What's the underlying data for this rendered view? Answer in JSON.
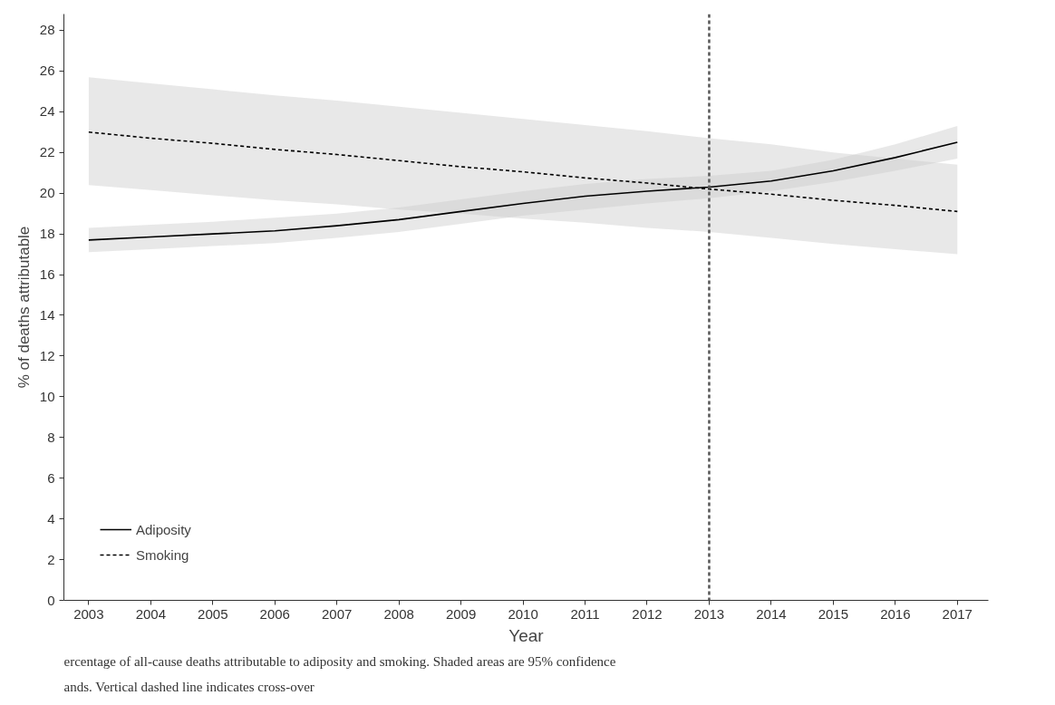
{
  "chart_data": {
    "type": "line",
    "xlabel": "Year",
    "ylabel": "% of deaths attributable",
    "x": [
      2003,
      2004,
      2005,
      2006,
      2007,
      2008,
      2009,
      2010,
      2011,
      2012,
      2013,
      2014,
      2015,
      2016,
      2017
    ],
    "series": [
      {
        "name": "Adiposity",
        "color": "#000000",
        "line_style": "solid",
        "values": [
          17.7,
          17.85,
          18.0,
          18.15,
          18.4,
          18.7,
          19.1,
          19.5,
          19.85,
          20.1,
          20.3,
          20.6,
          21.1,
          21.75,
          22.5
        ],
        "lower": [
          17.1,
          17.25,
          17.4,
          17.55,
          17.8,
          18.1,
          18.5,
          18.9,
          19.2,
          19.5,
          19.75,
          20.1,
          20.55,
          21.1,
          21.7
        ],
        "upper": [
          18.3,
          18.45,
          18.6,
          18.8,
          19.0,
          19.3,
          19.7,
          20.1,
          20.45,
          20.7,
          20.85,
          21.1,
          21.65,
          22.4,
          23.3
        ]
      },
      {
        "name": "Smoking",
        "color": "#000000",
        "line_style": "dashed",
        "values": [
          23.0,
          22.7,
          22.45,
          22.15,
          21.9,
          21.6,
          21.3,
          21.05,
          20.75,
          20.5,
          20.2,
          19.95,
          19.65,
          19.4,
          19.1
        ],
        "lower": [
          20.4,
          20.15,
          19.9,
          19.65,
          19.45,
          19.2,
          19.0,
          18.75,
          18.55,
          18.3,
          18.1,
          17.8,
          17.5,
          17.25,
          17.0
        ],
        "upper": [
          25.7,
          25.4,
          25.1,
          24.8,
          24.55,
          24.25,
          23.95,
          23.65,
          23.35,
          23.05,
          22.7,
          22.4,
          22.0,
          21.7,
          21.4
        ]
      }
    ],
    "xlim": [
      2002.6,
      2017.5
    ],
    "xticks": [
      2003,
      2004,
      2005,
      2006,
      2007,
      2008,
      2009,
      2010,
      2011,
      2012,
      2013,
      2014,
      2015,
      2016,
      2017
    ],
    "ylim": [
      0,
      28.8
    ],
    "yticks": [
      0,
      2,
      4,
      6,
      8,
      10,
      12,
      14,
      16,
      18,
      20,
      22,
      24,
      26,
      28
    ],
    "ref_lines": [
      {
        "axis": "x",
        "value": 2013,
        "color": "#555555",
        "line_style": "dashed"
      }
    ],
    "grid": false,
    "legend": "bottom left",
    "marker": "none",
    "annotations": [
      "ercentage of all-cause deaths attributable to adiposity and smoking. Shaded areas are 95% confidence",
      "ands. Vertical dashed line indicates cross-over"
    ]
  }
}
